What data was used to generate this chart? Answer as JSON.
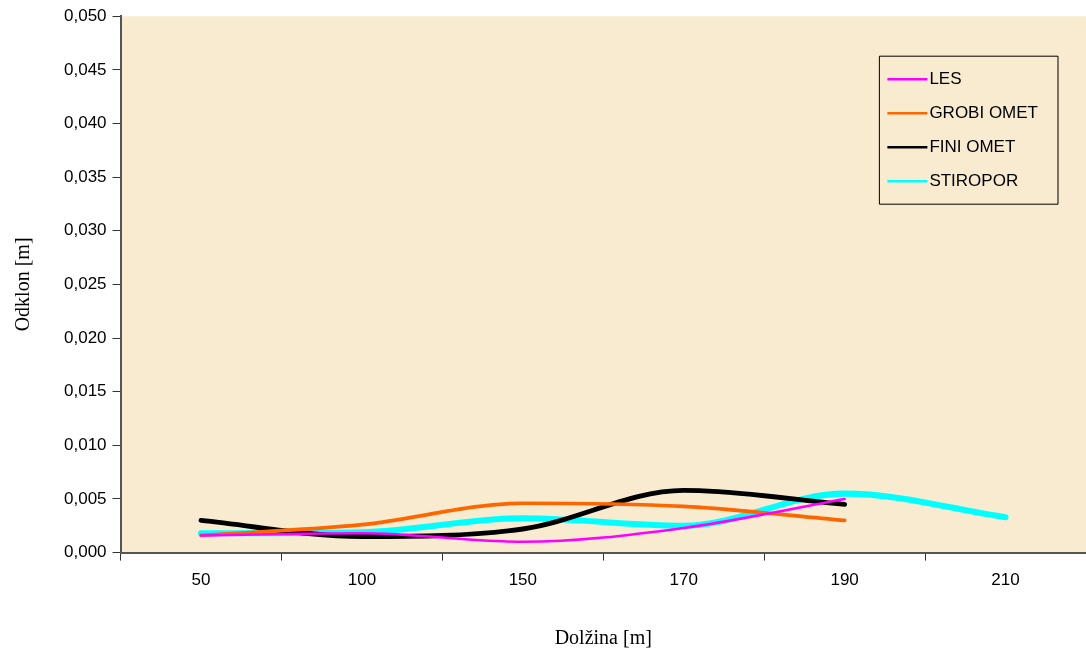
{
  "chart_data": {
    "type": "line",
    "xlabel": "Dolžina [m]",
    "ylabel": "Odklon [m]",
    "categories": [
      "50",
      "100",
      "150",
      "170",
      "190",
      "210"
    ],
    "series": [
      {
        "name": "LES",
        "color": "#ff00ff",
        "values": [
          0.0016,
          0.0018,
          0.001,
          0.0023,
          0.005,
          null
        ]
      },
      {
        "name": "GROBI OMET",
        "color": "#ff6600",
        "values": [
          0.0016,
          0.0026,
          0.0046,
          0.0043,
          0.003,
          null
        ]
      },
      {
        "name": "FINI OMET",
        "color": "#000000",
        "values": [
          0.003,
          0.0015,
          0.0022,
          0.0058,
          0.0045,
          null
        ]
      },
      {
        "name": "STIROPOR",
        "color": "#00ffff",
        "values": [
          0.0018,
          0.0019,
          0.0032,
          0.0025,
          0.0055,
          0.0033
        ]
      }
    ],
    "ylim": [
      0,
      0.05
    ],
    "yticks": [
      {
        "value": 0,
        "label": "0,000"
      },
      {
        "value": 0.005,
        "label": "0,005"
      },
      {
        "value": 0.01,
        "label": "0,010"
      },
      {
        "value": 0.015,
        "label": "0,015"
      },
      {
        "value": 0.02,
        "label": "0,020"
      },
      {
        "value": 0.025,
        "label": "0,025"
      },
      {
        "value": 0.03,
        "label": "0,030"
      },
      {
        "value": 0.035,
        "label": "0,035"
      },
      {
        "value": 0.04,
        "label": "0,040"
      },
      {
        "value": 0.045,
        "label": "0,045"
      },
      {
        "value": 0.05,
        "label": "0,050"
      }
    ],
    "grid": false,
    "legend": "top right",
    "marker": "none",
    "line_style": "solid"
  }
}
